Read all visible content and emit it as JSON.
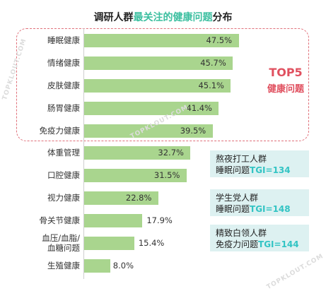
{
  "title": {
    "prefix": "调研人群",
    "highlight": "最关注的健康问题",
    "suffix": "分布"
  },
  "top5": {
    "line1": "TOP5",
    "line2": "健康问题"
  },
  "chart_data": {
    "type": "bar",
    "orientation": "horizontal",
    "categories": [
      "睡眠健康",
      "情绪健康",
      "皮肤健康",
      "肠胃健康",
      "免疫力健康",
      "体重管理",
      "口腔健康",
      "视力健康",
      "骨关节健康",
      "血压/血脂/血糖问题",
      "生殖健康"
    ],
    "category_lines": [
      [
        "睡眠健康"
      ],
      [
        "情绪健康"
      ],
      [
        "皮肤健康"
      ],
      [
        "肠胃健康"
      ],
      [
        "免疫力健康"
      ],
      [
        "体重管理"
      ],
      [
        "口腔健康"
      ],
      [
        "视力健康"
      ],
      [
        "骨关节健康"
      ],
      [
        "血压/血脂/",
        "血糖问题"
      ],
      [
        "生殖健康"
      ]
    ],
    "values": [
      47.5,
      45.7,
      45.1,
      41.4,
      39.5,
      32.7,
      31.5,
      22.8,
      17.9,
      15.4,
      8.0
    ],
    "value_labels": [
      "47.5%",
      "45.7%",
      "45.1%",
      "41.4%",
      "39.5%",
      "32.7%",
      "31.5%",
      "22.8%",
      "17.9%",
      "15.4%",
      "8.0%"
    ],
    "xlim": [
      0,
      50
    ],
    "bar_color": "#a9d58e",
    "grid": false
  },
  "callouts": [
    {
      "line1": "熬夜打工人群",
      "line2_prefix": "睡眠问题",
      "tgi": "TGI=134"
    },
    {
      "line1": "学生党人群",
      "line2_prefix": "睡眠问题",
      "tgi": "TGI=148"
    },
    {
      "line1": "精致白领人群",
      "line2_prefix": "免疫力问题",
      "tgi": "TGI=144"
    }
  ],
  "watermark": "TOPKLOUT.COM",
  "colors": {
    "accent": "#3cbfa0",
    "highlight_red": "#e0505f",
    "tgi": "#33c4c4",
    "callout_bg": "#ddf1f1"
  }
}
